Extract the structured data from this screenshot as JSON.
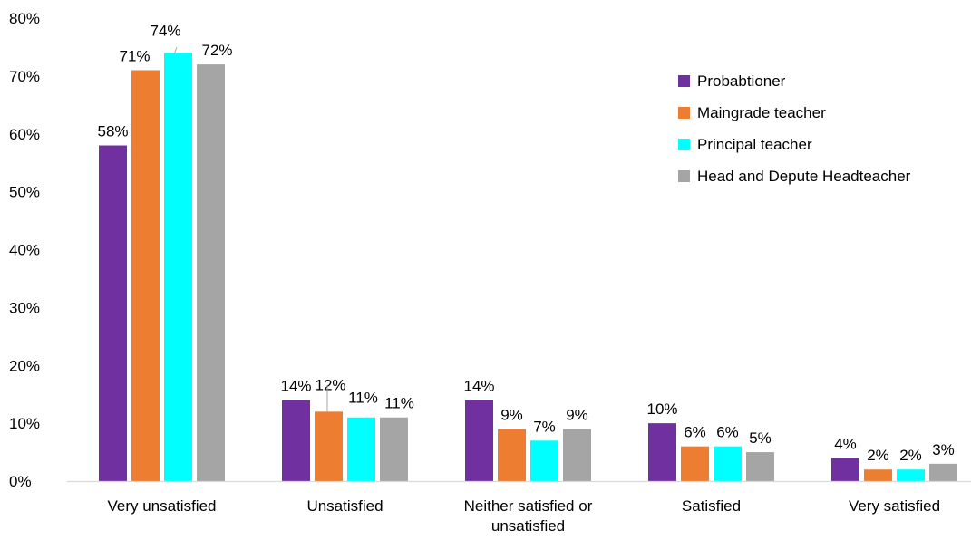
{
  "chart_data": {
    "type": "bar",
    "title": "",
    "xlabel": "",
    "ylabel": "",
    "ylim": [
      0,
      80
    ],
    "y_ticks": [
      "0%",
      "10%",
      "20%",
      "30%",
      "40%",
      "50%",
      "60%",
      "70%",
      "80%"
    ],
    "y_tick_values": [
      0,
      10,
      20,
      30,
      40,
      50,
      60,
      70,
      80
    ],
    "grid": false,
    "legend_position": "top-right",
    "categories": [
      [
        "Very unsatisfied"
      ],
      [
        "Unsatisfied"
      ],
      [
        "Neither satisfied or",
        "unsatisfied"
      ],
      [
        "Satisfied"
      ],
      [
        "Very satisfied"
      ]
    ],
    "series": [
      {
        "name": "Probabtioner",
        "color": "#7030A0",
        "values": [
          58,
          14,
          14,
          10,
          4
        ],
        "labels": [
          "58%",
          "14%",
          "14%",
          "10%",
          "4%"
        ]
      },
      {
        "name": "Maingrade teacher",
        "color": "#ED7D31",
        "values": [
          71,
          12,
          9,
          6,
          2
        ],
        "labels": [
          "71%",
          "12%",
          "9%",
          "6%",
          "2%"
        ]
      },
      {
        "name": "Principal teacher",
        "color": "#00FFFF",
        "values": [
          74,
          11,
          7,
          6,
          2
        ],
        "labels": [
          "74%",
          "11%",
          "7%",
          "6%",
          "2%"
        ]
      },
      {
        "name": "Head and Depute Headteacher",
        "color": "#A5A5A5",
        "values": [
          72,
          11,
          9,
          5,
          3
        ],
        "labels": [
          "72%",
          "11%",
          "9%",
          "5%",
          "3%"
        ]
      }
    ]
  }
}
